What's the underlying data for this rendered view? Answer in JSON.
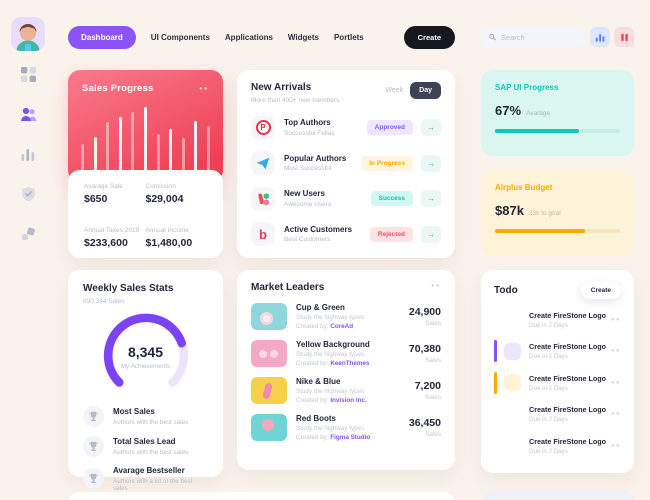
{
  "nav": {
    "items": [
      "Dashboard",
      "UI Components",
      "Applications",
      "Widgets",
      "Portlets"
    ],
    "active_item": "Dashboard",
    "create_label": "Create"
  },
  "sales_progress": {
    "title": "Sales Progress",
    "chart": {
      "type": "bar",
      "values": [
        40,
        50,
        72,
        80,
        88,
        96,
        55,
        62,
        48,
        74,
        66
      ],
      "bar_color": "#ffffff"
    },
    "stats": [
      {
        "label": "Avarage Sale",
        "value": "$650"
      },
      {
        "label": "Comission",
        "value": "$29,004"
      },
      {
        "label": "Annual Taxes 2019",
        "value": "$233,600"
      },
      {
        "label": "Annual Income",
        "value": "$1,480,00"
      }
    ]
  },
  "new_arrivals": {
    "title": "New Arrivals",
    "subtitle": "More than 400+ new members",
    "week_label": "Week",
    "day_label": "Day",
    "rows": [
      {
        "icon": "producthunt-logo",
        "title": "Top Authors",
        "subtitle": "Successful Fellas",
        "badge": "Approved"
      },
      {
        "icon": "telegram-logo",
        "title": "Popular Authors",
        "subtitle": "Most Successful",
        "badge": "In Progress"
      },
      {
        "icon": "figma-logo",
        "title": "New Users",
        "subtitle": "Awesome Users",
        "badge": "Success"
      },
      {
        "icon": "bitly-logo",
        "title": "Active Customers",
        "subtitle": "Best Customers",
        "badge": "Rejected"
      }
    ]
  },
  "weekly_stats": {
    "title": "Weekly Sales Stats",
    "subtitle": "890,344 Sales",
    "gauge": {
      "value": "8,345",
      "caption": "My Achievements",
      "percent": 76
    },
    "items": [
      {
        "title": "Most Sales",
        "subtitle": "Authors with the best sales"
      },
      {
        "title": "Total Sales Lead",
        "subtitle": "Authors with the best sales"
      },
      {
        "title": "Avarage Bestseller",
        "subtitle": "Authors with a lot of the best sales"
      }
    ]
  },
  "market_leaders": {
    "title": "Market Leaders",
    "created_by_prefix": "Created by:",
    "rows": [
      {
        "title": "Cup & Green",
        "subtitle": "Study the highway types",
        "author": "CoreAd",
        "value": "24,900",
        "unit": "Sales"
      },
      {
        "title": "Yellow Background",
        "subtitle": "Study the highway types",
        "author": "KeenThemes",
        "value": "70,380",
        "unit": "Sales"
      },
      {
        "title": "Nike & Blue",
        "subtitle": "Study the highway types",
        "author": "Invision Inc.",
        "value": "7,200",
        "unit": "Sales"
      },
      {
        "title": "Red Boots",
        "subtitle": "Study the highway types",
        "author": "Figma Studio",
        "value": "36,450",
        "unit": "Sales"
      }
    ]
  },
  "search": {
    "placeholder": "Search"
  },
  "sap_progress": {
    "title": "SAP UI Progress",
    "value": "67%",
    "caption": "Avarage",
    "percent": 67
  },
  "airplus_budget": {
    "title": "Airplus Budget",
    "value": "$87k",
    "caption": "23k to goal",
    "percent": 72
  },
  "todo": {
    "title": "Todo",
    "create_label": "Create",
    "items": [
      {
        "title": "Create FireStone Logo",
        "due": "Due in 2 Days",
        "color": "teal"
      },
      {
        "title": "Create FireStone Logo",
        "due": "Due in 2 Days",
        "color": "purple"
      },
      {
        "title": "Create FireStone Logo",
        "due": "Due in 2 Days",
        "color": "orange"
      },
      {
        "title": "Create FireStone Logo",
        "due": "Due in 2 Days",
        "color": "blue"
      },
      {
        "title": "Create FireStone Logo",
        "due": "Due in 2 Days",
        "color": "red"
      }
    ]
  },
  "colors": {
    "background": "#faf3ec",
    "accent_purple": "#8c54f8",
    "teal": "#14c6b8",
    "orange": "#ffa800",
    "blue": "#3699ff",
    "red": "#f64e60",
    "sales_gradient_start": "#fa7a8c",
    "sales_gradient_end": "#ee4156"
  }
}
